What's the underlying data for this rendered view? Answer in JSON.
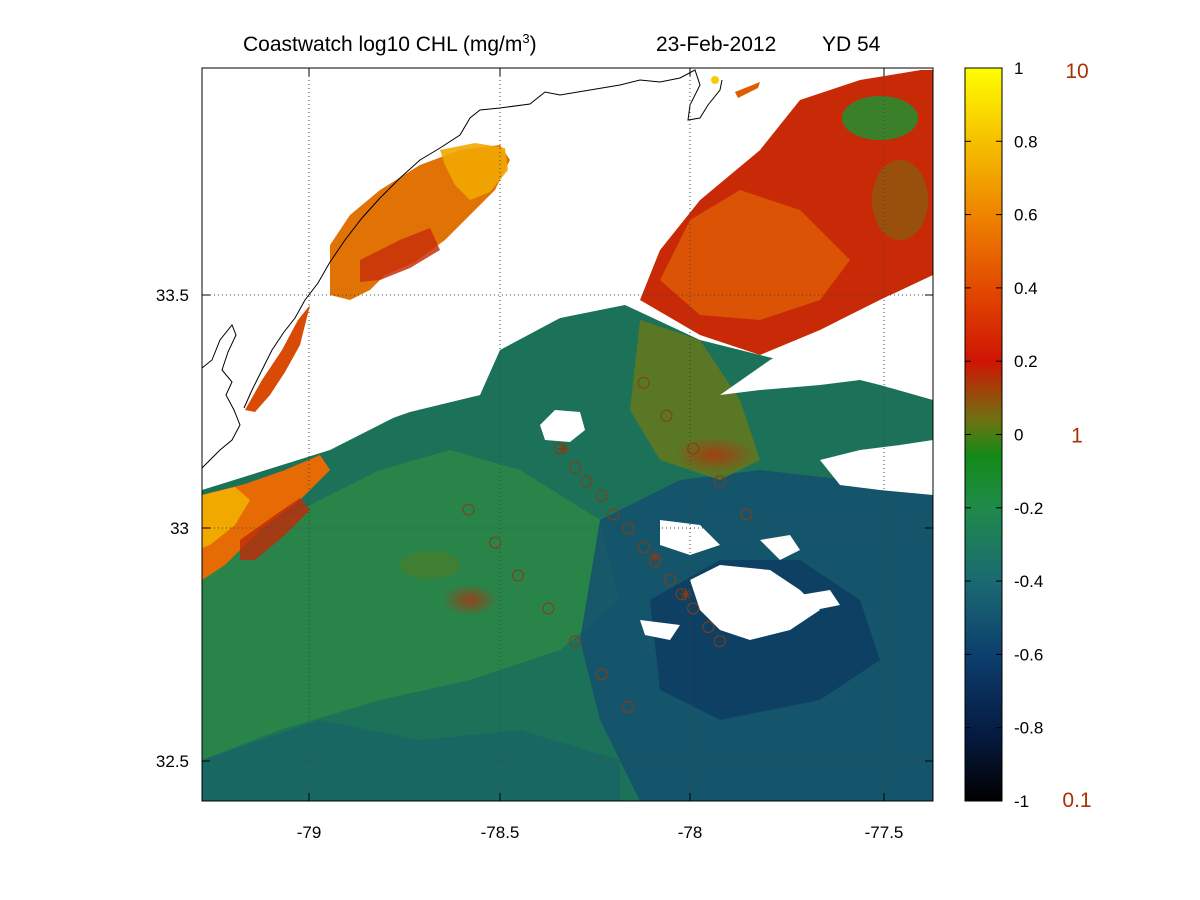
{
  "title": {
    "product": "Coastwatch  log10  CHL (mg/m",
    "unit_superscript": "3",
    "unit_close": ")",
    "date": "23-Feb-2012",
    "yearday": "YD 54"
  },
  "axes": {
    "x_ticks": [
      "-79",
      "-78.5",
      "-78",
      "-77.5"
    ],
    "x_tick_values": [
      -79,
      -78.5,
      -78,
      -77.5
    ],
    "y_ticks": [
      "33.5",
      "33",
      "32.5"
    ],
    "y_tick_values": [
      33.5,
      33,
      32.5
    ],
    "xlim": [
      -79.28,
      -77.36
    ],
    "ylim": [
      32.42,
      33.98
    ],
    "grid": "dotted"
  },
  "colorbar": {
    "tick_labels": [
      "1",
      "0.8",
      "0.6",
      "0.4",
      "0.2",
      "0",
      "-0.2",
      "-0.4",
      "-0.6",
      "-0.8",
      "-1"
    ],
    "tick_values": [
      1,
      0.8,
      0.6,
      0.4,
      0.2,
      0,
      -0.2,
      -0.4,
      -0.6,
      -0.8,
      -1
    ],
    "range": [
      -1,
      1
    ],
    "linear_labels": [
      "10",
      "1",
      "0.1"
    ],
    "linear_label_values": [
      1,
      0,
      -1
    ],
    "linear_label_color": "#a83200",
    "colors": [
      "#000000",
      "#0a2060",
      "#1b5a80",
      "#1c7d6a",
      "#169038",
      "#5a8a1a",
      "#c01808",
      "#e05a00",
      "#f0a000",
      "#ffff00"
    ]
  },
  "chart_data": {
    "type": "heatmap",
    "title": "Coastwatch  log10  CHL (mg/m3)   23-Feb-2012   YD 54",
    "xlabel": "",
    "ylabel": "",
    "x_range": [
      -79.28,
      -77.36
    ],
    "y_range": [
      32.42,
      33.98
    ],
    "value_range": [
      -1,
      1
    ],
    "stations": [
      [
        -78.12,
        33.31
      ],
      [
        -78.06,
        33.24
      ],
      [
        -77.99,
        33.17
      ],
      [
        -77.92,
        33.1
      ],
      [
        -77.85,
        33.03
      ],
      [
        -78.58,
        33.04
      ],
      [
        -78.51,
        32.97
      ],
      [
        -78.45,
        32.9
      ],
      [
        -78.37,
        32.83
      ],
      [
        -78.3,
        32.76
      ],
      [
        -78.23,
        32.69
      ],
      [
        -78.16,
        32.62
      ],
      [
        -78.34,
        33.17
      ],
      [
        -78.3,
        33.13
      ],
      [
        -78.27,
        33.1
      ],
      [
        -78.23,
        33.07
      ],
      [
        -78.2,
        33.03
      ],
      [
        -78.16,
        33.0
      ],
      [
        -78.12,
        32.96
      ],
      [
        -78.09,
        32.93
      ],
      [
        -78.05,
        32.89
      ],
      [
        -78.02,
        32.86
      ],
      [
        -77.99,
        32.83
      ],
      [
        -77.95,
        32.79
      ],
      [
        -77.92,
        32.76
      ]
    ],
    "stars": [
      [
        -78.33,
        33.17
      ],
      [
        -78.09,
        32.94
      ],
      [
        -78.01,
        32.86
      ]
    ]
  }
}
